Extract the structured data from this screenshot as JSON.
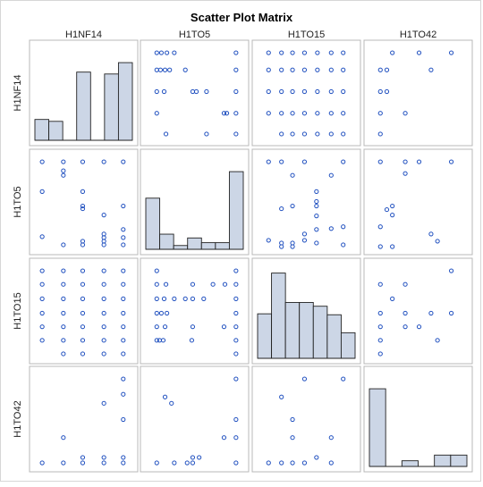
{
  "chart_data": {
    "type": "scatter",
    "title": "Scatter Plot Matrix",
    "variables": [
      "H1NF14",
      "H1TO5",
      "H1TO15",
      "H1TO42"
    ],
    "colors": {
      "marker": "#1f4fbf",
      "bar_fill": "#ccd6e6",
      "bar_stroke": "#222222",
      "cell_border": "#b8b8b8",
      "outer_border": "#c8c8c8"
    },
    "histograms": {
      "H1NF14": [
        0.22,
        0.2,
        0.0,
        0.72,
        0.0,
        0.7,
        0.82
      ],
      "H1TO5": [
        0.54,
        0.16,
        0.04,
        0.12,
        0.07,
        0.07,
        0.82
      ],
      "H1TO15": [
        0.47,
        0.9,
        0.59,
        0.59,
        0.55,
        0.46,
        0.27
      ],
      "H1TO42": [
        0.82,
        0.0,
        0.06,
        0.0,
        0.12,
        0.12
      ]
    },
    "pairs": [
      {
        "row": 0,
        "col": 1,
        "points": [
          [
            0.09,
            0.95
          ],
          [
            0.14,
            0.95
          ],
          [
            0.2,
            0.95
          ],
          [
            0.28,
            0.95
          ],
          [
            0.95,
            0.95
          ],
          [
            0.09,
            0.76
          ],
          [
            0.13,
            0.76
          ],
          [
            0.18,
            0.76
          ],
          [
            0.23,
            0.76
          ],
          [
            0.4,
            0.76
          ],
          [
            0.95,
            0.76
          ],
          [
            0.09,
            0.52
          ],
          [
            0.17,
            0.52
          ],
          [
            0.48,
            0.52
          ],
          [
            0.52,
            0.52
          ],
          [
            0.63,
            0.52
          ],
          [
            0.95,
            0.52
          ],
          [
            0.09,
            0.28
          ],
          [
            0.82,
            0.28
          ],
          [
            0.85,
            0.28
          ],
          [
            0.95,
            0.28
          ],
          [
            0.19,
            0.05
          ],
          [
            0.63,
            0.05
          ],
          [
            0.95,
            0.05
          ]
        ]
      },
      {
        "row": 0,
        "col": 2,
        "points": [
          [
            0.09,
            0.95
          ],
          [
            0.23,
            0.95
          ],
          [
            0.35,
            0.95
          ],
          [
            0.48,
            0.95
          ],
          [
            0.62,
            0.95
          ],
          [
            0.77,
            0.95
          ],
          [
            0.9,
            0.95
          ],
          [
            0.09,
            0.76
          ],
          [
            0.23,
            0.76
          ],
          [
            0.35,
            0.76
          ],
          [
            0.48,
            0.76
          ],
          [
            0.62,
            0.76
          ],
          [
            0.77,
            0.76
          ],
          [
            0.9,
            0.76
          ],
          [
            0.09,
            0.52
          ],
          [
            0.23,
            0.52
          ],
          [
            0.35,
            0.52
          ],
          [
            0.48,
            0.52
          ],
          [
            0.62,
            0.52
          ],
          [
            0.77,
            0.52
          ],
          [
            0.9,
            0.52
          ],
          [
            0.09,
            0.28
          ],
          [
            0.23,
            0.28
          ],
          [
            0.35,
            0.28
          ],
          [
            0.48,
            0.28
          ],
          [
            0.62,
            0.28
          ],
          [
            0.77,
            0.28
          ],
          [
            0.9,
            0.28
          ],
          [
            0.23,
            0.05
          ],
          [
            0.35,
            0.05
          ],
          [
            0.48,
            0.05
          ],
          [
            0.62,
            0.05
          ],
          [
            0.77,
            0.05
          ],
          [
            0.9,
            0.05
          ]
        ]
      },
      {
        "row": 0,
        "col": 3,
        "points": [
          [
            0.22,
            0.95
          ],
          [
            0.51,
            0.95
          ],
          [
            0.86,
            0.95
          ],
          [
            0.09,
            0.76
          ],
          [
            0.16,
            0.76
          ],
          [
            0.64,
            0.76
          ],
          [
            0.09,
            0.52
          ],
          [
            0.16,
            0.52
          ],
          [
            0.09,
            0.28
          ],
          [
            0.36,
            0.28
          ],
          [
            0.09,
            0.05
          ]
        ]
      },
      {
        "row": 1,
        "col": 0,
        "points": [
          [
            0.05,
            0.95
          ],
          [
            0.28,
            0.95
          ],
          [
            0.49,
            0.95
          ],
          [
            0.72,
            0.95
          ],
          [
            0.93,
            0.95
          ],
          [
            0.28,
            0.85
          ],
          [
            0.28,
            0.8
          ],
          [
            0.05,
            0.62
          ],
          [
            0.49,
            0.62
          ],
          [
            0.49,
            0.46
          ],
          [
            0.49,
            0.43
          ],
          [
            0.72,
            0.36
          ],
          [
            0.93,
            0.46
          ],
          [
            0.05,
            0.12
          ],
          [
            0.72,
            0.15
          ],
          [
            0.72,
            0.11
          ],
          [
            0.72,
            0.07
          ],
          [
            0.72,
            0.03
          ],
          [
            0.93,
            0.2
          ],
          [
            0.93,
            0.11
          ],
          [
            0.28,
            0.03
          ],
          [
            0.49,
            0.07
          ],
          [
            0.49,
            0.03
          ],
          [
            0.93,
            0.03
          ]
        ]
      },
      {
        "row": 1,
        "col": 2,
        "points": [
          [
            0.09,
            0.95
          ],
          [
            0.23,
            0.95
          ],
          [
            0.48,
            0.95
          ],
          [
            0.9,
            0.95
          ],
          [
            0.35,
            0.8
          ],
          [
            0.77,
            0.8
          ],
          [
            0.61,
            0.62
          ],
          [
            0.61,
            0.51
          ],
          [
            0.23,
            0.43
          ],
          [
            0.35,
            0.46
          ],
          [
            0.61,
            0.46
          ],
          [
            0.61,
            0.35
          ],
          [
            0.9,
            0.23
          ],
          [
            0.48,
            0.15
          ],
          [
            0.61,
            0.2
          ],
          [
            0.77,
            0.21
          ],
          [
            0.09,
            0.08
          ],
          [
            0.23,
            0.05
          ],
          [
            0.23,
            0.01
          ],
          [
            0.35,
            0.05
          ],
          [
            0.35,
            0.01
          ],
          [
            0.48,
            0.08
          ],
          [
            0.61,
            0.05
          ],
          [
            0.9,
            0.03
          ]
        ]
      },
      {
        "row": 1,
        "col": 3,
        "points": [
          [
            0.09,
            0.95
          ],
          [
            0.36,
            0.95
          ],
          [
            0.51,
            0.95
          ],
          [
            0.86,
            0.95
          ],
          [
            0.36,
            0.82
          ],
          [
            0.22,
            0.46
          ],
          [
            0.16,
            0.42
          ],
          [
            0.22,
            0.36
          ],
          [
            0.09,
            0.23
          ],
          [
            0.64,
            0.15
          ],
          [
            0.71,
            0.07
          ],
          [
            0.09,
            0.01
          ],
          [
            0.22,
            0.01
          ]
        ]
      },
      {
        "row": 2,
        "col": 0,
        "points": [
          [
            0.05,
            0.95
          ],
          [
            0.28,
            0.95
          ],
          [
            0.49,
            0.95
          ],
          [
            0.72,
            0.95
          ],
          [
            0.93,
            0.95
          ],
          [
            0.05,
            0.8
          ],
          [
            0.28,
            0.8
          ],
          [
            0.49,
            0.8
          ],
          [
            0.72,
            0.8
          ],
          [
            0.93,
            0.8
          ],
          [
            0.05,
            0.64
          ],
          [
            0.28,
            0.64
          ],
          [
            0.49,
            0.64
          ],
          [
            0.72,
            0.64
          ],
          [
            0.93,
            0.64
          ],
          [
            0.05,
            0.48
          ],
          [
            0.28,
            0.48
          ],
          [
            0.49,
            0.48
          ],
          [
            0.72,
            0.48
          ],
          [
            0.93,
            0.48
          ],
          [
            0.05,
            0.33
          ],
          [
            0.28,
            0.33
          ],
          [
            0.49,
            0.33
          ],
          [
            0.72,
            0.33
          ],
          [
            0.93,
            0.33
          ],
          [
            0.05,
            0.18
          ],
          [
            0.28,
            0.18
          ],
          [
            0.49,
            0.18
          ],
          [
            0.72,
            0.18
          ],
          [
            0.93,
            0.18
          ],
          [
            0.28,
            0.03
          ],
          [
            0.49,
            0.03
          ],
          [
            0.72,
            0.03
          ],
          [
            0.93,
            0.03
          ]
        ]
      },
      {
        "row": 2,
        "col": 1,
        "points": [
          [
            0.09,
            0.95
          ],
          [
            0.95,
            0.95
          ],
          [
            0.09,
            0.8
          ],
          [
            0.19,
            0.8
          ],
          [
            0.48,
            0.8
          ],
          [
            0.7,
            0.8
          ],
          [
            0.83,
            0.8
          ],
          [
            0.95,
            0.8
          ],
          [
            0.09,
            0.64
          ],
          [
            0.17,
            0.64
          ],
          [
            0.28,
            0.64
          ],
          [
            0.4,
            0.64
          ],
          [
            0.48,
            0.64
          ],
          [
            0.6,
            0.64
          ],
          [
            0.95,
            0.64
          ],
          [
            0.09,
            0.48
          ],
          [
            0.14,
            0.48
          ],
          [
            0.2,
            0.48
          ],
          [
            0.95,
            0.48
          ],
          [
            0.09,
            0.33
          ],
          [
            0.18,
            0.33
          ],
          [
            0.48,
            0.33
          ],
          [
            0.82,
            0.33
          ],
          [
            0.95,
            0.33
          ],
          [
            0.09,
            0.18
          ],
          [
            0.12,
            0.18
          ],
          [
            0.16,
            0.18
          ],
          [
            0.47,
            0.18
          ],
          [
            0.95,
            0.18
          ],
          [
            0.95,
            0.03
          ]
        ]
      },
      {
        "row": 2,
        "col": 3,
        "points": [
          [
            0.86,
            0.95
          ],
          [
            0.09,
            0.8
          ],
          [
            0.36,
            0.8
          ],
          [
            0.22,
            0.64
          ],
          [
            0.09,
            0.48
          ],
          [
            0.36,
            0.48
          ],
          [
            0.64,
            0.48
          ],
          [
            0.86,
            0.48
          ],
          [
            0.09,
            0.33
          ],
          [
            0.36,
            0.33
          ],
          [
            0.51,
            0.33
          ],
          [
            0.09,
            0.18
          ],
          [
            0.71,
            0.18
          ],
          [
            0.09,
            0.03
          ]
        ]
      },
      {
        "row": 3,
        "col": 0,
        "points": [
          [
            0.93,
            0.95
          ],
          [
            0.93,
            0.78
          ],
          [
            0.72,
            0.68
          ],
          [
            0.93,
            0.5
          ],
          [
            0.28,
            0.3
          ],
          [
            0.49,
            0.08
          ],
          [
            0.72,
            0.08
          ],
          [
            0.93,
            0.08
          ],
          [
            0.05,
            0.02
          ],
          [
            0.28,
            0.02
          ],
          [
            0.49,
            0.02
          ],
          [
            0.72,
            0.02
          ],
          [
            0.93,
            0.02
          ]
        ]
      },
      {
        "row": 3,
        "col": 1,
        "points": [
          [
            0.95,
            0.95
          ],
          [
            0.18,
            0.75
          ],
          [
            0.25,
            0.68
          ],
          [
            0.95,
            0.5
          ],
          [
            0.82,
            0.3
          ],
          [
            0.95,
            0.3
          ],
          [
            0.48,
            0.08
          ],
          [
            0.55,
            0.08
          ],
          [
            0.09,
            0.02
          ],
          [
            0.28,
            0.02
          ],
          [
            0.42,
            0.02
          ],
          [
            0.48,
            0.02
          ],
          [
            0.95,
            0.02
          ]
        ]
      },
      {
        "row": 3,
        "col": 2,
        "points": [
          [
            0.48,
            0.95
          ],
          [
            0.9,
            0.95
          ],
          [
            0.23,
            0.75
          ],
          [
            0.35,
            0.5
          ],
          [
            0.35,
            0.3
          ],
          [
            0.77,
            0.3
          ],
          [
            0.61,
            0.08
          ],
          [
            0.09,
            0.02
          ],
          [
            0.23,
            0.02
          ],
          [
            0.35,
            0.02
          ],
          [
            0.48,
            0.02
          ],
          [
            0.77,
            0.02
          ]
        ]
      }
    ]
  }
}
